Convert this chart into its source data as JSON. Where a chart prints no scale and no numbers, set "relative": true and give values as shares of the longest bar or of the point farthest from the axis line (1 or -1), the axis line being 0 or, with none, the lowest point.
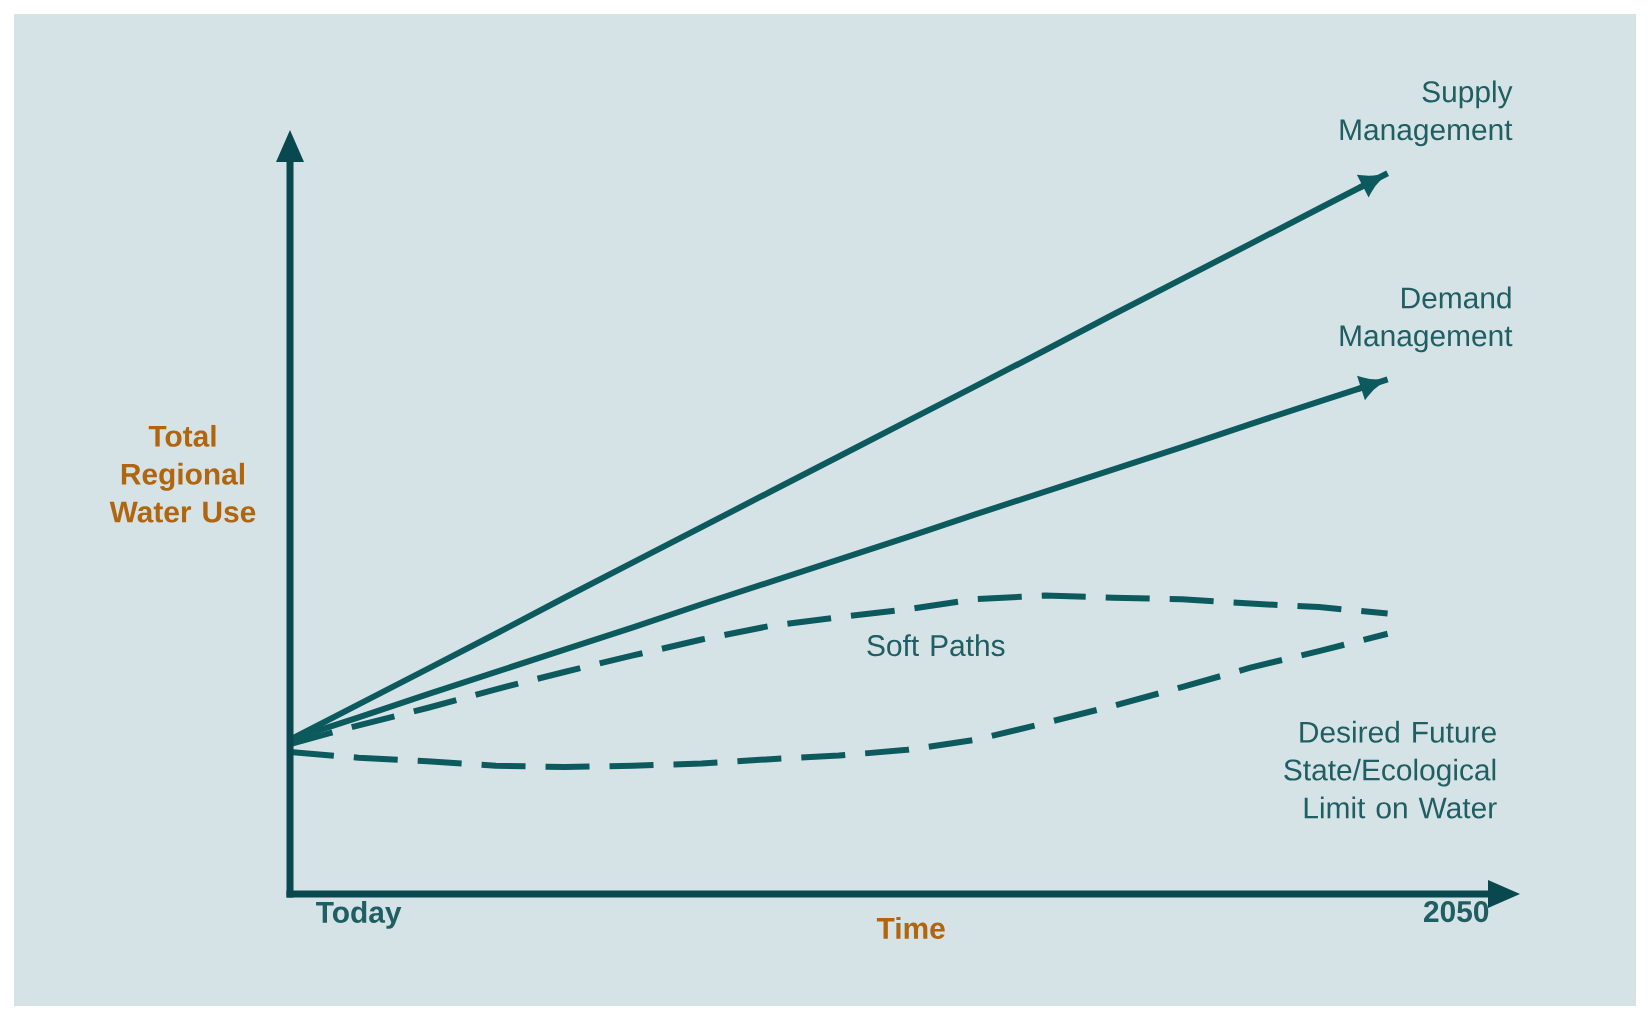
{
  "chart_data": {
    "type": "line",
    "relative": true,
    "xlabel": "Time",
    "ylabel": "Total Regional Water Use",
    "categories": [
      null,
      "Today",
      null,
      null,
      null,
      null,
      null,
      null,
      null,
      null,
      null,
      null,
      null,
      null,
      null,
      null,
      null,
      "2050"
    ],
    "tick_labels": "x",
    "marker": "none",
    "series": [
      {
        "name": "Supply Management",
        "color": "#0d5a5e",
        "line_style": "solid",
        "values": [
          0.214,
          0.263,
          0.312,
          0.361,
          0.411,
          0.46,
          0.509,
          0.558,
          0.607,
          0.656,
          0.705,
          0.754,
          0.804,
          0.853,
          0.902,
          0.951,
          1,
          null
        ]
      },
      {
        "name": "Demand Management",
        "color": "#0d5a5e",
        "line_style": "solid",
        "values": [
          0.214,
          0.245,
          0.277,
          0.308,
          0.339,
          0.37,
          0.402,
          0.433,
          0.464,
          0.495,
          0.527,
          0.558,
          0.589,
          0.62,
          0.652,
          0.683,
          0.714,
          null
        ]
      },
      {
        "name": "Soft Paths",
        "color": "#0d5a5e",
        "line_style": "dashed",
        "values": [
          0.208,
          0.234,
          0.258,
          0.284,
          0.308,
          0.331,
          0.353,
          0.372,
          0.384,
          0.395,
          0.409,
          0.414,
          0.411,
          0.409,
          0.403,
          0.398,
          0.389,
          null
        ]
      },
      {
        "color": "#0d5a5e",
        "line_style": "dashed",
        "values": [
          0.197,
          0.189,
          0.184,
          0.178,
          0.176,
          0.178,
          0.181,
          0.187,
          0.192,
          0.2,
          0.214,
          0.237,
          0.261,
          0.287,
          0.314,
          0.337,
          0.361,
          null
        ]
      }
    ],
    "annotations": [
      "Desired Future State/Ecological Limit on Water"
    ]
  }
}
